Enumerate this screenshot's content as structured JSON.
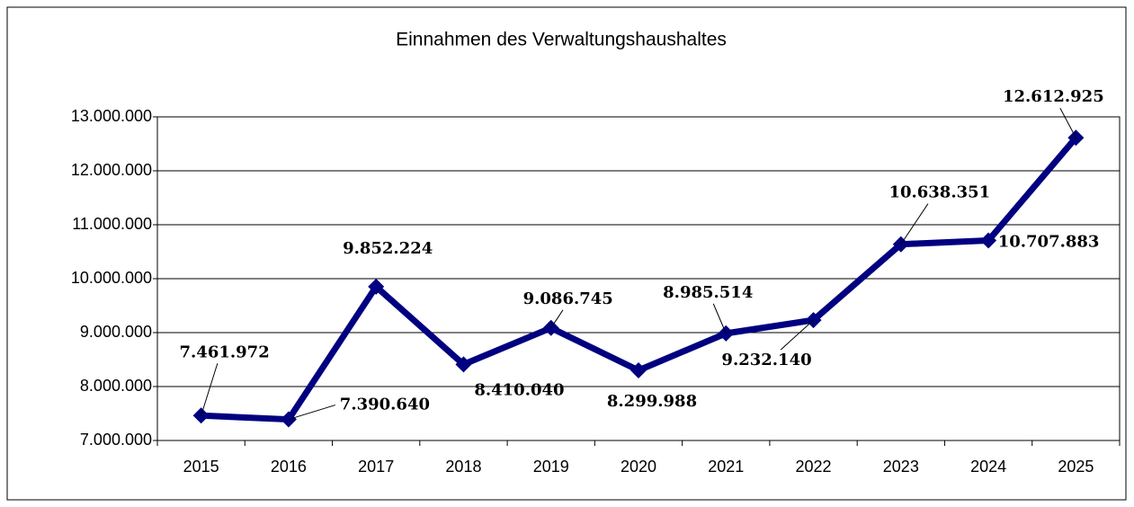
{
  "chart_data": {
    "type": "line",
    "title": "Einnahmen des Verwaltungshaushaltes",
    "categories": [
      "2015",
      "2016",
      "2017",
      "2018",
      "2019",
      "2020",
      "2021",
      "2022",
      "2023",
      "2024",
      "2025"
    ],
    "series": [
      {
        "name": "Einnahmen",
        "color": "#000080",
        "values": [
          7461972,
          7390640,
          9852224,
          8410040,
          9086745,
          8299988,
          8985514,
          9232140,
          10638351,
          10707883,
          12612925
        ],
        "value_labels": [
          "7.461.972",
          "7.390.640",
          "9.852.224",
          "8.410.040",
          "9.086.745",
          "8.299.988",
          "8.985.514",
          "9.232.140",
          "10.638.351",
          "10.707.883",
          "12.612.925"
        ]
      }
    ],
    "ylim": [
      7000000,
      13000000
    ],
    "yticks": [
      {
        "value": 7000000,
        "label": "7.000.000"
      },
      {
        "value": 8000000,
        "label": "8.000.000"
      },
      {
        "value": 9000000,
        "label": "9.000.000"
      },
      {
        "value": 10000000,
        "label": "10.000.000"
      },
      {
        "value": 11000000,
        "label": "11.000.000"
      },
      {
        "value": 12000000,
        "label": "12.000.000"
      },
      {
        "value": 13000000,
        "label": "13.000.000"
      }
    ],
    "grid": true
  }
}
